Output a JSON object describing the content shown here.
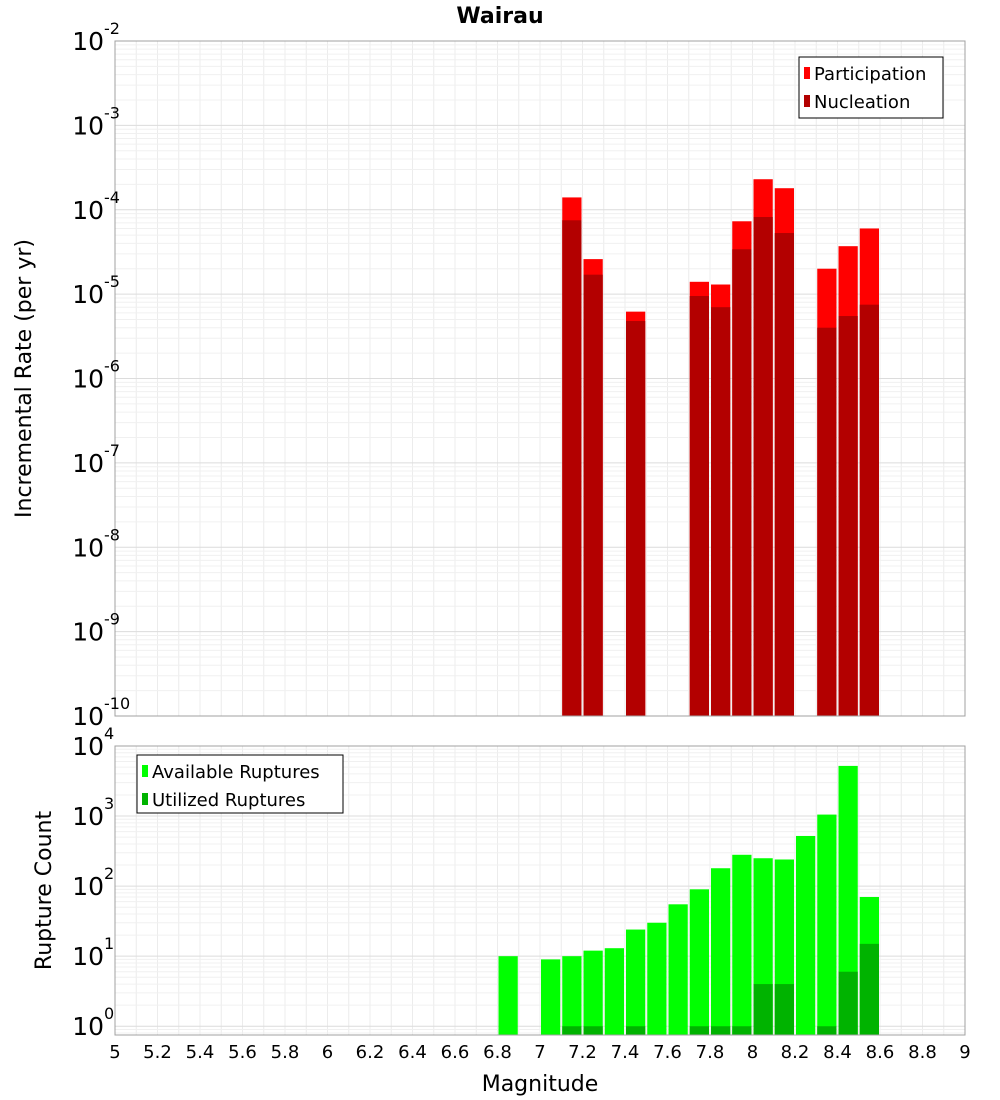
{
  "chart_data": {
    "type": "bar",
    "title": "Wairau",
    "xlabel": "Magnitude",
    "xlim": [
      5,
      9
    ],
    "x_ticks": [
      "5",
      "5.2",
      "5.4",
      "5.6",
      "5.8",
      "6",
      "6.2",
      "6.4",
      "6.6",
      "6.8",
      "7",
      "7.2",
      "7.4",
      "7.6",
      "7.8",
      "8",
      "8.2",
      "8.4",
      "8.6",
      "8.8",
      "9"
    ],
    "bin_width": 0.1,
    "panels": [
      {
        "ylabel": "Incremental Rate (per yr)",
        "yscale": "log",
        "ylim": [
          1e-10,
          0.01
        ],
        "y_ticks": [
          {
            "base": "10",
            "exp": "-10"
          },
          {
            "base": "10",
            "exp": "-9"
          },
          {
            "base": "10",
            "exp": "-8"
          },
          {
            "base": "10",
            "exp": "-7"
          },
          {
            "base": "10",
            "exp": "-6"
          },
          {
            "base": "10",
            "exp": "-5"
          },
          {
            "base": "10",
            "exp": "-4"
          },
          {
            "base": "10",
            "exp": "-3"
          },
          {
            "base": "10",
            "exp": "-2"
          }
        ],
        "legend_position": "top-right",
        "series": [
          {
            "name": "Participation",
            "color": "#ff0000",
            "x": [
              7.15,
              7.25,
              7.45,
              7.75,
              7.85,
              7.95,
              8.05,
              8.15,
              8.35,
              8.45,
              8.55
            ],
            "values": [
              0.00014,
              2.6e-05,
              6.2e-06,
              1.4e-05,
              1.3e-05,
              7.3e-05,
              0.00023,
              0.00018,
              2e-05,
              3.7e-05,
              6e-05
            ]
          },
          {
            "name": "Nucleation",
            "color": "#b30000",
            "x": [
              7.15,
              7.25,
              7.45,
              7.75,
              7.85,
              7.95,
              8.05,
              8.15,
              8.35,
              8.45,
              8.55
            ],
            "values": [
              7.5e-05,
              1.7e-05,
              4.8e-06,
              9.5e-06,
              7e-06,
              3.4e-05,
              8.2e-05,
              5.3e-05,
              4e-06,
              5.5e-06,
              7.5e-06
            ]
          }
        ]
      },
      {
        "ylabel": "Rupture Count",
        "yscale": "log",
        "ylim": [
          0.75,
          10000.0
        ],
        "y_ticks": [
          {
            "base": "10",
            "exp": "0"
          },
          {
            "base": "10",
            "exp": "1"
          },
          {
            "base": "10",
            "exp": "2"
          },
          {
            "base": "10",
            "exp": "3"
          },
          {
            "base": "10",
            "exp": "4"
          }
        ],
        "legend_position": "top-left",
        "series": [
          {
            "name": "Available Ruptures",
            "color": "#00ff00",
            "x": [
              6.85,
              7.05,
              7.15,
              7.25,
              7.35,
              7.45,
              7.55,
              7.65,
              7.75,
              7.85,
              7.95,
              8.05,
              8.15,
              8.25,
              8.35,
              8.45,
              8.55
            ],
            "values": [
              10,
              9,
              10,
              12,
              13,
              24,
              30,
              55,
              90,
              180,
              280,
              250,
              240,
              520,
              1050,
              5200,
              70
            ]
          },
          {
            "name": "Utilized Ruptures",
            "color": "#00b300",
            "x": [
              7.15,
              7.25,
              7.45,
              7.75,
              7.85,
              7.95,
              8.05,
              8.15,
              8.35,
              8.45,
              8.55
            ],
            "values": [
              1,
              1,
              1,
              1,
              1,
              1,
              4,
              4,
              1,
              6,
              15
            ]
          }
        ]
      }
    ]
  }
}
